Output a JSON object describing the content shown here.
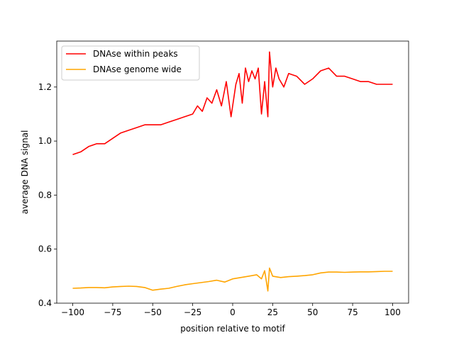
{
  "chart_data": {
    "type": "line",
    "xlabel": "position relative to motif",
    "ylabel": "average DNA signal",
    "xlim": [
      -110,
      110
    ],
    "ylim": [
      0.4,
      1.37
    ],
    "xticks": [
      -100,
      -75,
      -50,
      -25,
      0,
      25,
      50,
      75,
      100
    ],
    "xtick_labels": [
      "−100",
      "−75",
      "−50",
      "−25",
      "0",
      "25",
      "50",
      "75",
      "100"
    ],
    "yticks": [
      0.4,
      0.6,
      0.8,
      1.0,
      1.2
    ],
    "ytick_labels": [
      "0.4",
      "0.6",
      "0.8",
      "1.0",
      "1.2"
    ],
    "grid": false,
    "legend_position": "upper-left",
    "series": [
      {
        "name": "DNAse within peaks",
        "color": "#ff0000",
        "points": [
          [
            -100,
            0.95
          ],
          [
            -95,
            0.96
          ],
          [
            -90,
            0.98
          ],
          [
            -85,
            0.99
          ],
          [
            -80,
            0.99
          ],
          [
            -75,
            1.01
          ],
          [
            -70,
            1.03
          ],
          [
            -65,
            1.04
          ],
          [
            -60,
            1.05
          ],
          [
            -55,
            1.06
          ],
          [
            -50,
            1.06
          ],
          [
            -45,
            1.06
          ],
          [
            -40,
            1.07
          ],
          [
            -35,
            1.08
          ],
          [
            -30,
            1.09
          ],
          [
            -25,
            1.1
          ],
          [
            -22,
            1.13
          ],
          [
            -19,
            1.11
          ],
          [
            -16,
            1.16
          ],
          [
            -13,
            1.14
          ],
          [
            -10,
            1.19
          ],
          [
            -7,
            1.13
          ],
          [
            -4,
            1.22
          ],
          [
            -1,
            1.09
          ],
          [
            2,
            1.21
          ],
          [
            4,
            1.25
          ],
          [
            6,
            1.14
          ],
          [
            8,
            1.27
          ],
          [
            10,
            1.22
          ],
          [
            12,
            1.26
          ],
          [
            14,
            1.23
          ],
          [
            16,
            1.27
          ],
          [
            18,
            1.1
          ],
          [
            20,
            1.22
          ],
          [
            22,
            1.09
          ],
          [
            23,
            1.33
          ],
          [
            25,
            1.2
          ],
          [
            27,
            1.27
          ],
          [
            29,
            1.23
          ],
          [
            32,
            1.2
          ],
          [
            35,
            1.25
          ],
          [
            40,
            1.24
          ],
          [
            45,
            1.21
          ],
          [
            50,
            1.23
          ],
          [
            55,
            1.26
          ],
          [
            60,
            1.27
          ],
          [
            65,
            1.24
          ],
          [
            70,
            1.24
          ],
          [
            75,
            1.23
          ],
          [
            80,
            1.22
          ],
          [
            85,
            1.22
          ],
          [
            90,
            1.21
          ],
          [
            95,
            1.21
          ],
          [
            100,
            1.21
          ]
        ]
      },
      {
        "name": "DNAse genome wide",
        "color": "#ffa500",
        "points": [
          [
            -100,
            0.455
          ],
          [
            -95,
            0.456
          ],
          [
            -90,
            0.458
          ],
          [
            -85,
            0.458
          ],
          [
            -80,
            0.457
          ],
          [
            -75,
            0.46
          ],
          [
            -70,
            0.462
          ],
          [
            -65,
            0.463
          ],
          [
            -60,
            0.462
          ],
          [
            -55,
            0.458
          ],
          [
            -50,
            0.448
          ],
          [
            -45,
            0.452
          ],
          [
            -40,
            0.455
          ],
          [
            -35,
            0.462
          ],
          [
            -30,
            0.468
          ],
          [
            -25,
            0.472
          ],
          [
            -20,
            0.476
          ],
          [
            -15,
            0.48
          ],
          [
            -10,
            0.485
          ],
          [
            -5,
            0.478
          ],
          [
            0,
            0.49
          ],
          [
            5,
            0.495
          ],
          [
            10,
            0.5
          ],
          [
            15,
            0.505
          ],
          [
            18,
            0.49
          ],
          [
            20,
            0.52
          ],
          [
            22,
            0.445
          ],
          [
            23,
            0.53
          ],
          [
            25,
            0.5
          ],
          [
            30,
            0.495
          ],
          [
            35,
            0.498
          ],
          [
            40,
            0.5
          ],
          [
            45,
            0.502
          ],
          [
            50,
            0.505
          ],
          [
            55,
            0.512
          ],
          [
            60,
            0.515
          ],
          [
            65,
            0.515
          ],
          [
            70,
            0.514
          ],
          [
            75,
            0.515
          ],
          [
            80,
            0.516
          ],
          [
            85,
            0.516
          ],
          [
            90,
            0.517
          ],
          [
            95,
            0.518
          ],
          [
            100,
            0.518
          ]
        ]
      }
    ]
  }
}
